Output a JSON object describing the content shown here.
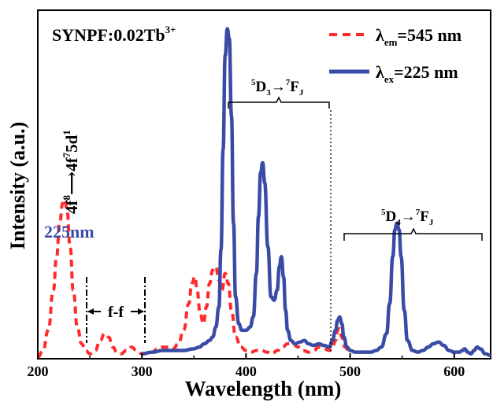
{
  "chart_data": {
    "type": "line",
    "title": "SYNPF:0.02Tb",
    "title_sup": "3+",
    "xlabel": "Wavelength (nm)",
    "ylabel": "Intensity (a.u.)",
    "xlim": [
      200,
      635
    ],
    "ylim": [
      0,
      1.0
    ],
    "x_ticks": [
      200,
      300,
      400,
      500,
      600
    ],
    "y_ticks_shown": false,
    "legend_position": "top-right",
    "legend": [
      {
        "series": "emission",
        "symbol": "λ",
        "sub": "em",
        "rest": "=545 nm"
      },
      {
        "series": "excitation",
        "symbol": "λ",
        "sub": "ex",
        "rest": "=225 nm"
      }
    ],
    "series": [
      {
        "id": "excitation",
        "color": "#3a4ba6",
        "dash": false,
        "x": [
          300,
          310,
          320,
          330,
          340,
          350,
          355,
          360,
          365,
          368,
          371,
          374,
          376,
          378,
          380,
          382,
          384,
          386,
          388,
          390,
          393,
          396,
          400,
          404,
          407,
          410,
          412,
          414,
          416,
          418,
          421,
          424,
          427,
          430,
          432,
          434,
          436,
          438,
          440,
          443,
          447,
          452,
          456,
          460,
          465,
          470,
          475,
          480,
          483,
          486,
          488,
          490,
          492,
          494,
          497,
          500,
          505,
          510,
          515,
          520,
          525,
          530,
          535,
          538,
          541,
          543,
          545,
          547,
          549,
          552,
          555,
          560,
          565,
          570,
          575,
          580,
          585,
          590,
          595,
          600,
          605,
          608,
          610,
          613,
          616,
          619,
          622,
          625,
          630,
          635
        ],
        "y": [
          0.01,
          0.015,
          0.02,
          0.02,
          0.02,
          0.025,
          0.03,
          0.04,
          0.05,
          0.06,
          0.09,
          0.15,
          0.32,
          0.62,
          0.9,
          0.98,
          0.95,
          0.72,
          0.4,
          0.18,
          0.1,
          0.08,
          0.08,
          0.09,
          0.12,
          0.25,
          0.42,
          0.55,
          0.58,
          0.52,
          0.33,
          0.18,
          0.17,
          0.2,
          0.27,
          0.3,
          0.24,
          0.14,
          0.08,
          0.05,
          0.04,
          0.045,
          0.05,
          0.04,
          0.035,
          0.04,
          0.035,
          0.03,
          0.05,
          0.08,
          0.11,
          0.12,
          0.1,
          0.06,
          0.03,
          0.02,
          0.015,
          0.015,
          0.015,
          0.015,
          0.02,
          0.03,
          0.07,
          0.16,
          0.3,
          0.38,
          0.4,
          0.38,
          0.3,
          0.14,
          0.05,
          0.02,
          0.015,
          0.02,
          0.03,
          0.04,
          0.045,
          0.035,
          0.02,
          0.015,
          0.015,
          0.02,
          0.025,
          0.015,
          0.01,
          0.02,
          0.03,
          0.025,
          0.01,
          0.005
        ]
      },
      {
        "id": "emission",
        "color": "#ff2a2a",
        "dash": true,
        "x": [
          200,
          205,
          210,
          215,
          218,
          221,
          224,
          226,
          228,
          231,
          234,
          238,
          242,
          246,
          250,
          255,
          260,
          264,
          268,
          272,
          276,
          280,
          285,
          290,
          295,
          300,
          305,
          310,
          315,
          320,
          325,
          330,
          335,
          340,
          345,
          348,
          351,
          353,
          356,
          359,
          362,
          365,
          368,
          371,
          374,
          377,
          380,
          383,
          386,
          390,
          395,
          400,
          405,
          410,
          415,
          420,
          425,
          430,
          435,
          440,
          445,
          450,
          455,
          460,
          465,
          470,
          475,
          480,
          483,
          486,
          488,
          490,
          492,
          495,
          500
        ],
        "y": [
          0.0,
          0.02,
          0.08,
          0.2,
          0.3,
          0.4,
          0.46,
          0.47,
          0.44,
          0.33,
          0.2,
          0.09,
          0.04,
          0.02,
          0.01,
          0.02,
          0.05,
          0.07,
          0.06,
          0.03,
          0.015,
          0.01,
          0.02,
          0.03,
          0.02,
          0.01,
          0.01,
          0.015,
          0.025,
          0.03,
          0.03,
          0.025,
          0.04,
          0.08,
          0.16,
          0.22,
          0.24,
          0.2,
          0.13,
          0.1,
          0.15,
          0.22,
          0.26,
          0.27,
          0.23,
          0.2,
          0.25,
          0.22,
          0.14,
          0.06,
          0.03,
          0.02,
          0.015,
          0.02,
          0.02,
          0.015,
          0.01,
          0.02,
          0.03,
          0.04,
          0.04,
          0.03,
          0.02,
          0.015,
          0.02,
          0.03,
          0.025,
          0.02,
          0.03,
          0.05,
          0.08,
          0.085,
          0.06,
          0.03,
          0.01
        ]
      }
    ],
    "annotations": {
      "peak_label": "225nm",
      "transition_main": "4f",
      "transition_sup1": "8",
      "transition_arrow": "⟶",
      "transition_mid": "4f",
      "transition_sup2": "7",
      "transition_end": "5d",
      "transition_sup3": "1",
      "ff_label": "f-f",
      "bracket1_pre": "5",
      "bracket1_d": "D",
      "bracket1_dsub": "3",
      "bracket1_post_sup": "7",
      "bracket1_f": "F",
      "bracket1_fsub": "J",
      "bracket2_pre": "5",
      "bracket2_d": "D",
      "bracket2_dsub": "4",
      "bracket2_post_sup": "7",
      "bracket2_f": "F",
      "bracket2_fsub": "J"
    }
  }
}
